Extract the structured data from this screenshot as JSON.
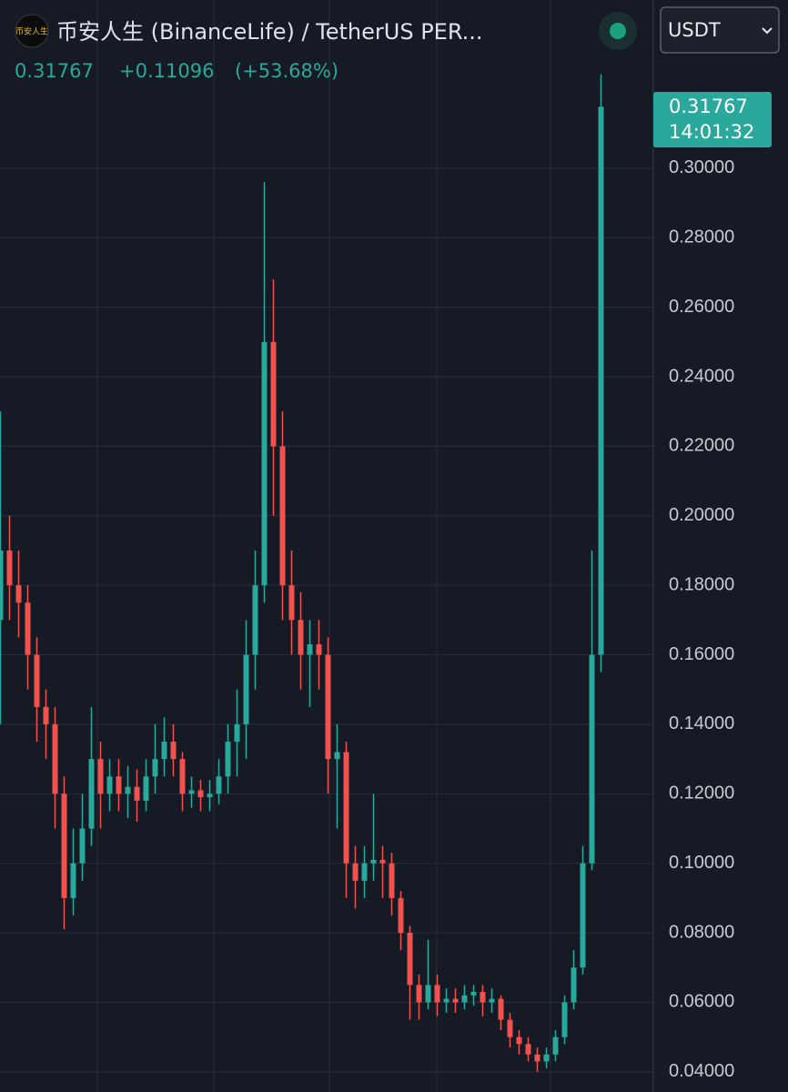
{
  "chart_data": {
    "type": "candlestick",
    "logo": "币安人生",
    "title": "币安人生 (BinanceLife) / TetherUS PER...",
    "last": 0.31767,
    "change": "+0.11096",
    "change_pct": "(+53.68%)",
    "quote_currency": "USDT",
    "badge_time": "14:01:32",
    "up_color": "#2aa89b",
    "down_color": "#ef5350",
    "open": [
      0.17,
      0.19,
      0.18,
      0.175,
      0.16,
      0.145,
      0.14,
      0.12,
      0.09,
      0.1,
      0.11,
      0.13,
      0.12,
      0.125,
      0.12,
      0.122,
      0.118,
      0.125,
      0.13,
      0.135,
      0.13,
      0.12,
      0.121,
      0.119,
      0.12,
      0.125,
      0.135,
      0.14,
      0.16,
      0.18,
      0.25,
      0.22,
      0.18,
      0.17,
      0.16,
      0.163,
      0.16,
      0.13,
      0.132,
      0.1,
      0.095,
      0.1,
      0.101,
      0.1,
      0.09,
      0.08,
      0.065,
      0.06,
      0.065,
      0.06,
      0.061,
      0.06,
      0.062,
      0.063,
      0.06,
      0.061,
      0.055,
      0.05,
      0.048,
      0.045,
      0.043,
      0.045,
      0.05,
      0.06,
      0.07,
      0.1,
      0.16
    ],
    "high": [
      0.23,
      0.2,
      0.19,
      0.18,
      0.165,
      0.15,
      0.145,
      0.125,
      0.11,
      0.12,
      0.145,
      0.135,
      0.13,
      0.13,
      0.128,
      0.127,
      0.13,
      0.14,
      0.142,
      0.14,
      0.132,
      0.125,
      0.124,
      0.124,
      0.13,
      0.14,
      0.15,
      0.17,
      0.19,
      0.296,
      0.268,
      0.23,
      0.19,
      0.178,
      0.17,
      0.17,
      0.165,
      0.14,
      0.135,
      0.105,
      0.105,
      0.12,
      0.105,
      0.103,
      0.092,
      0.082,
      0.068,
      0.078,
      0.068,
      0.064,
      0.064,
      0.065,
      0.065,
      0.065,
      0.064,
      0.062,
      0.057,
      0.052,
      0.05,
      0.047,
      0.047,
      0.052,
      0.062,
      0.075,
      0.105,
      0.19,
      0.327
    ],
    "low": [
      0.14,
      0.17,
      0.165,
      0.15,
      0.135,
      0.13,
      0.11,
      0.081,
      0.085,
      0.095,
      0.105,
      0.11,
      0.115,
      0.115,
      0.113,
      0.112,
      0.115,
      0.12,
      0.125,
      0.125,
      0.115,
      0.116,
      0.115,
      0.115,
      0.117,
      0.12,
      0.125,
      0.13,
      0.15,
      0.175,
      0.2,
      0.17,
      0.16,
      0.15,
      0.145,
      0.15,
      0.12,
      0.11,
      0.09,
      0.087,
      0.09,
      0.095,
      0.09,
      0.085,
      0.075,
      0.055,
      0.055,
      0.058,
      0.056,
      0.057,
      0.057,
      0.058,
      0.059,
      0.056,
      0.057,
      0.052,
      0.047,
      0.045,
      0.043,
      0.04,
      0.041,
      0.043,
      0.048,
      0.058,
      0.068,
      0.098,
      0.155
    ],
    "close": [
      0.19,
      0.18,
      0.175,
      0.16,
      0.145,
      0.14,
      0.12,
      0.09,
      0.1,
      0.11,
      0.13,
      0.12,
      0.125,
      0.12,
      0.122,
      0.118,
      0.125,
      0.13,
      0.135,
      0.13,
      0.12,
      0.121,
      0.119,
      0.12,
      0.125,
      0.135,
      0.14,
      0.16,
      0.18,
      0.25,
      0.22,
      0.18,
      0.17,
      0.16,
      0.163,
      0.16,
      0.13,
      0.132,
      0.1,
      0.095,
      0.1,
      0.101,
      0.1,
      0.09,
      0.08,
      0.065,
      0.06,
      0.065,
      0.06,
      0.061,
      0.06,
      0.062,
      0.063,
      0.06,
      0.061,
      0.055,
      0.05,
      0.048,
      0.045,
      0.043,
      0.045,
      0.05,
      0.06,
      0.07,
      0.1,
      0.16,
      0.31767
    ],
    "ylim": [
      0.0342,
      0.3484
    ],
    "yticks": [
      {
        "value": 0.04,
        "label": "0.04000"
      },
      {
        "value": 0.06,
        "label": "0.06000"
      },
      {
        "value": 0.08,
        "label": "0.08000"
      },
      {
        "value": 0.1,
        "label": "0.10000"
      },
      {
        "value": 0.12,
        "label": "0.12000"
      },
      {
        "value": 0.14,
        "label": "0.14000"
      },
      {
        "value": 0.16,
        "label": "0.16000"
      },
      {
        "value": 0.18,
        "label": "0.18000"
      },
      {
        "value": 0.2,
        "label": "0.20000"
      },
      {
        "value": 0.22,
        "label": "0.22000"
      },
      {
        "value": 0.24,
        "label": "0.24000"
      },
      {
        "value": 0.26,
        "label": "0.26000"
      },
      {
        "value": 0.28,
        "label": "0.28000"
      },
      {
        "value": 0.3,
        "label": "0.30000"
      }
    ],
    "grid": true
  }
}
